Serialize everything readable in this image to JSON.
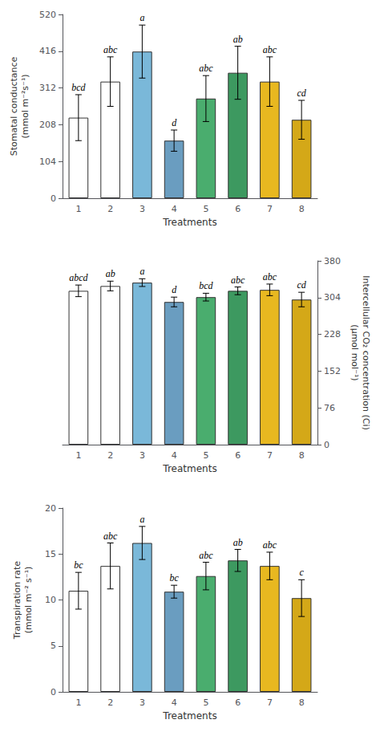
{
  "chart_data": [
    {
      "type": "bar",
      "categories": [
        "1",
        "2",
        "3",
        "4",
        "5",
        "6",
        "7",
        "8"
      ],
      "xlabel": "Treatments",
      "ylabel": "Stomatal conductance\n(mmol m⁻²s⁻¹)",
      "values": [
        228,
        330,
        415,
        163,
        282,
        355,
        330,
        222
      ],
      "errors": [
        65,
        70,
        75,
        30,
        65,
        75,
        70,
        55
      ],
      "annotations": [
        "bcd",
        "abc",
        "a",
        "d",
        "abc",
        "ab",
        "abc",
        "cd"
      ],
      "colors": [
        "#ffffff",
        "#ffffff",
        "#7ab8d9",
        "#6a9dc0",
        "#4aad6e",
        "#3d9960",
        "#e8b820",
        "#d4a818"
      ],
      "ylim": [
        0,
        520
      ],
      "yticks": [
        0,
        104,
        208,
        312,
        416,
        520
      ],
      "grid": false
    },
    {
      "type": "bar",
      "categories": [
        "1",
        "2",
        "3",
        "4",
        "5",
        "6",
        "7",
        "8"
      ],
      "xlabel": "Treatments",
      "ylabel": "Intercellular CO₂ concentration (Ci)\n(μmol mol⁻¹)",
      "values": [
        318,
        328,
        335,
        295,
        305,
        318,
        320,
        300
      ],
      "errors": [
        12,
        10,
        8,
        10,
        8,
        8,
        12,
        15
      ],
      "annotations": [
        "abcd",
        "ab",
        "a",
        "d",
        "bcd",
        "abc",
        "abc",
        "cd"
      ],
      "colors": [
        "#ffffff",
        "#ffffff",
        "#7ab8d9",
        "#6a9dc0",
        "#4aad6e",
        "#3d9960",
        "#e8b820",
        "#d4a818"
      ],
      "ylim": [
        0,
        380
      ],
      "yticks": [
        0,
        76,
        152,
        228,
        304,
        380
      ],
      "grid": false
    },
    {
      "type": "bar",
      "categories": [
        "1",
        "2",
        "3",
        "4",
        "5",
        "6",
        "7",
        "8"
      ],
      "xlabel": "Treatments",
      "ylabel": "Transpiration rate\n(mmol m⁻² s⁻¹)",
      "values": [
        11.0,
        13.7,
        16.2,
        10.9,
        12.6,
        14.3,
        13.7,
        10.2
      ],
      "errors": [
        2.0,
        2.5,
        1.8,
        0.7,
        1.5,
        1.2,
        1.5,
        2.0
      ],
      "annotations": [
        "bc",
        "abc",
        "a",
        "bc",
        "abc",
        "ab",
        "abc",
        "c"
      ],
      "colors": [
        "#ffffff",
        "#ffffff",
        "#7ab8d9",
        "#6a9dc0",
        "#4aad6e",
        "#3d9960",
        "#e8b820",
        "#d4a818"
      ],
      "ylim": [
        0,
        20
      ],
      "yticks": [
        0,
        5,
        10,
        15,
        20
      ],
      "grid": false
    }
  ]
}
